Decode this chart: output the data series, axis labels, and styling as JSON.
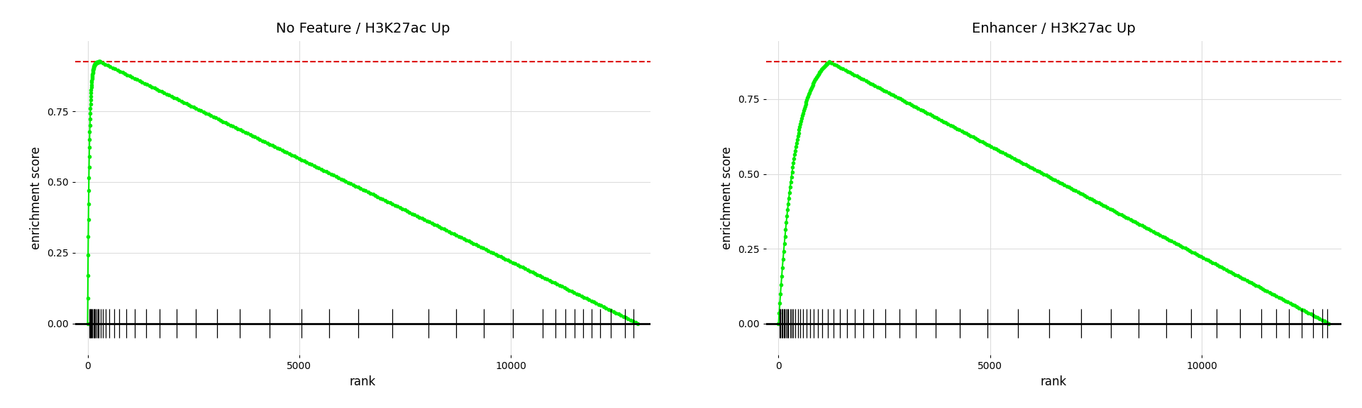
{
  "plots": [
    {
      "title": "No Feature / H3K27ac Up",
      "max_rank": 13000,
      "peak_es": 0.925,
      "peak_rank": 300,
      "ylabel": "enrichment score",
      "xlabel": "rank",
      "line_color": "#00ee00",
      "dashed_color": "#dd0000",
      "barcode_positions": [
        48,
        65,
        82,
        98,
        115,
        135,
        158,
        178,
        205,
        235,
        268,
        310,
        360,
        425,
        510,
        620,
        750,
        920,
        1120,
        1380,
        1700,
        2100,
        2550,
        3050,
        3600,
        4300,
        5050,
        5700,
        6400,
        7200,
        8050,
        8700,
        9350,
        10050,
        10750,
        11050,
        11280,
        11500,
        11700,
        11900,
        12100,
        12350,
        12700,
        12900
      ],
      "yticks": [
        0.0,
        0.25,
        0.5,
        0.75
      ],
      "xticks": [
        0,
        5000,
        10000
      ],
      "bg_color": "#ffffff",
      "grid_color": "#dddddd",
      "rise_steepness": 8.0
    },
    {
      "title": "Enhancer / H3K27ac Up",
      "max_rank": 13000,
      "peak_es": 0.875,
      "peak_rank": 1200,
      "ylabel": "enrichment score",
      "xlabel": "rank",
      "line_color": "#00ee00",
      "dashed_color": "#dd0000",
      "barcode_positions": [
        22,
        45,
        68,
        92,
        118,
        145,
        172,
        202,
        235,
        270,
        308,
        350,
        400,
        455,
        515,
        582,
        655,
        738,
        828,
        928,
        1038,
        1160,
        1295,
        1445,
        1610,
        1795,
        2000,
        2240,
        2520,
        2850,
        3250,
        3720,
        4280,
        4940,
        5650,
        6400,
        7150,
        7850,
        8500,
        9150,
        9750,
        10350,
        10900,
        11400,
        11750,
        12050,
        12350,
        12620,
        12850,
        12960
      ],
      "yticks": [
        0.0,
        0.25,
        0.5,
        0.75
      ],
      "xticks": [
        0,
        5000,
        10000
      ],
      "bg_color": "#ffffff",
      "grid_color": "#dddddd",
      "rise_steepness": 3.0
    }
  ],
  "figure_bg": "#ffffff",
  "title_fontsize": 14,
  "label_fontsize": 12,
  "tick_fontsize": 10,
  "marker_size": 3.0,
  "line_width": 1.5
}
